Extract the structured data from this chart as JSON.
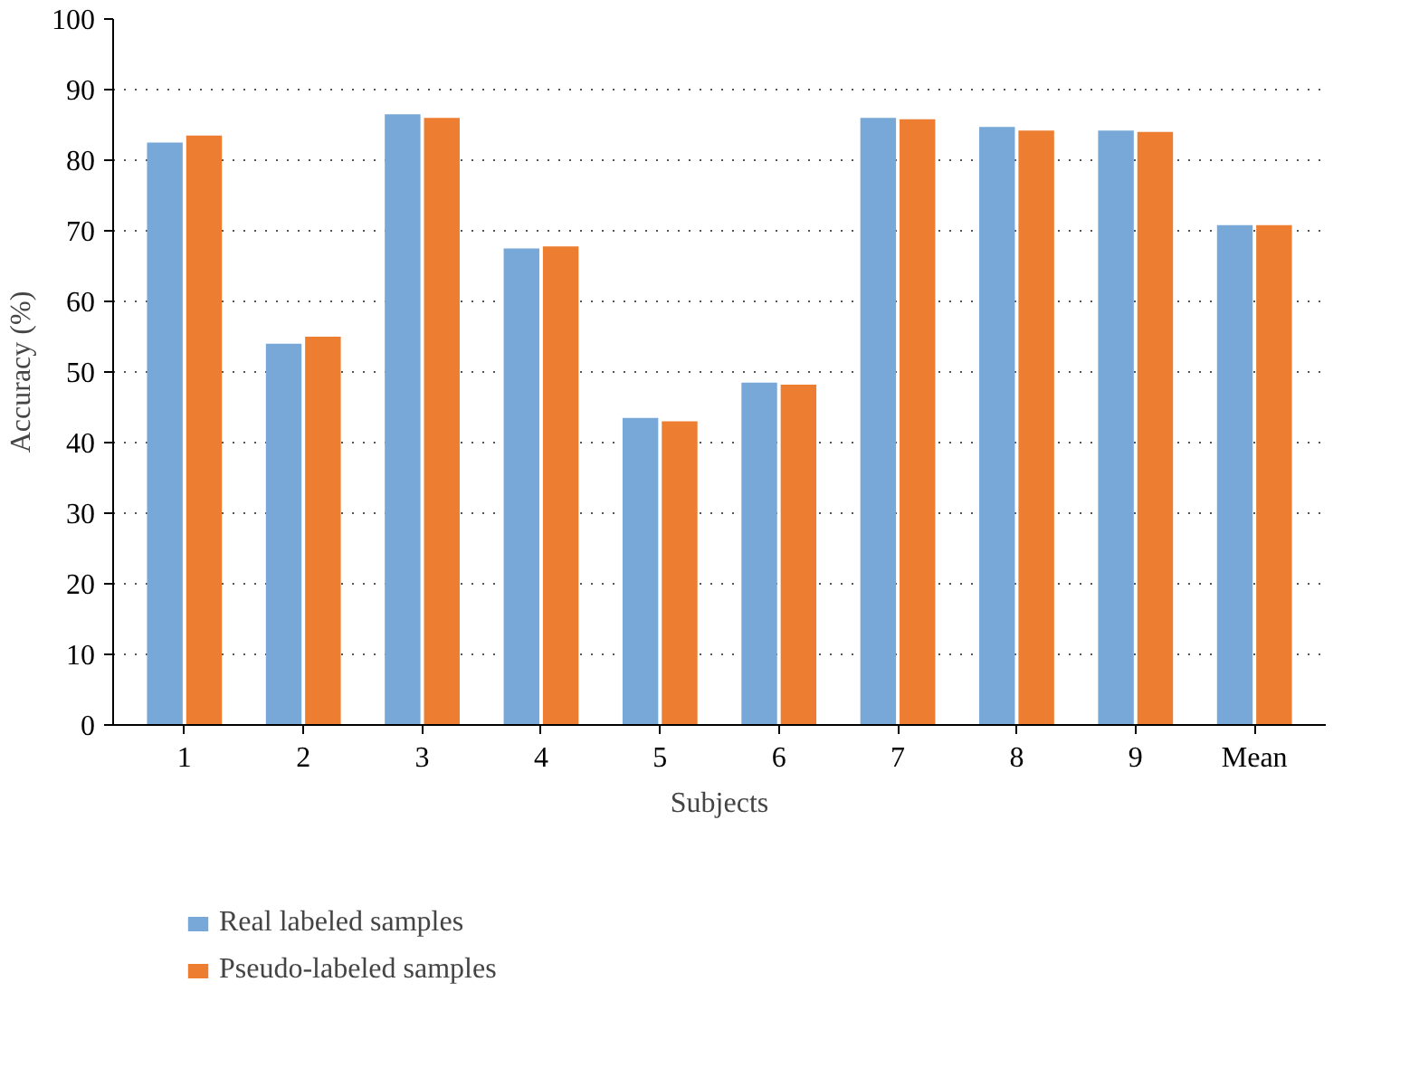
{
  "chart_data": {
    "type": "bar",
    "xlabel": "Subjects",
    "ylabel": "Accuracy (%)",
    "categories": [
      "1",
      "2",
      "3",
      "4",
      "5",
      "6",
      "7",
      "8",
      "9",
      "Mean"
    ],
    "series": [
      {
        "name": "Real labeled samples",
        "color": "#78a8d8",
        "values": [
          82.5,
          54.0,
          86.5,
          67.5,
          43.5,
          48.5,
          86.0,
          84.7,
          84.2,
          70.8
        ]
      },
      {
        "name": "Pseudo-labeled samples",
        "color": "#ed7d31",
        "values": [
          83.5,
          55.0,
          86.0,
          67.8,
          43.0,
          48.2,
          85.8,
          84.2,
          84.0,
          70.8
        ]
      }
    ],
    "ylim": [
      0,
      100
    ],
    "yticks": [
      0,
      10,
      20,
      30,
      40,
      50,
      60,
      70,
      80,
      90,
      100
    ],
    "grid": "y",
    "legend": "bottom left"
  }
}
